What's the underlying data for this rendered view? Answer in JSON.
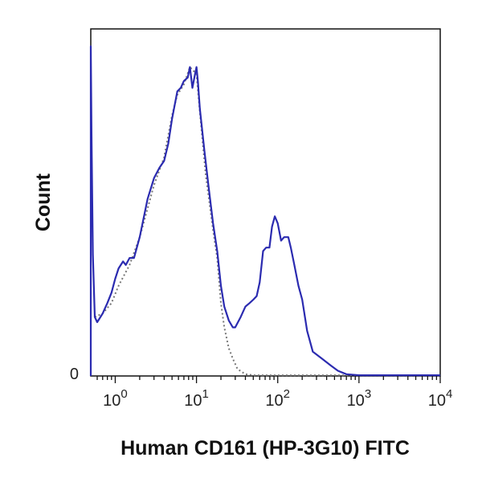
{
  "chart_data": {
    "type": "line",
    "title": "",
    "xlabel": "Human CD161 (HP-3G10) FITC",
    "ylabel": "Count",
    "x_scale": "log",
    "xlim": [
      0.5,
      10000
    ],
    "ylim": [
      0,
      100
    ],
    "y_tick_labels": [
      "0"
    ],
    "x_ticks": [
      {
        "value": 1,
        "base": "10",
        "exp": "0"
      },
      {
        "value": 10,
        "base": "10",
        "exp": "1"
      },
      {
        "value": 100,
        "base": "10",
        "exp": "2"
      },
      {
        "value": 1000,
        "base": "10",
        "exp": "3"
      },
      {
        "value": 10000,
        "base": "10",
        "exp": "4"
      }
    ],
    "grid": false,
    "legend": "none",
    "series": [
      {
        "style": "solid",
        "color": "#2b2bb0",
        "points": [
          [
            0.5,
            0
          ],
          [
            0.5,
            95
          ],
          [
            0.51,
            70
          ],
          [
            0.53,
            35
          ],
          [
            0.56,
            17
          ],
          [
            0.6,
            15.5
          ],
          [
            0.7,
            18
          ],
          [
            0.8,
            21
          ],
          [
            0.9,
            24
          ],
          [
            1.0,
            28
          ],
          [
            1.1,
            31
          ],
          [
            1.25,
            33
          ],
          [
            1.35,
            32
          ],
          [
            1.5,
            34
          ],
          [
            1.7,
            34
          ],
          [
            2.0,
            40
          ],
          [
            2.5,
            51
          ],
          [
            3.0,
            57
          ],
          [
            3.5,
            60
          ],
          [
            4.0,
            62
          ],
          [
            4.5,
            67
          ],
          [
            5.0,
            74
          ],
          [
            5.8,
            82
          ],
          [
            6.4,
            83
          ],
          [
            7.0,
            85
          ],
          [
            7.8,
            86
          ],
          [
            8.3,
            89
          ],
          [
            8.9,
            83
          ],
          [
            9.6,
            87
          ],
          [
            10.0,
            89
          ],
          [
            10.4,
            85
          ],
          [
            11.0,
            77
          ],
          [
            12.5,
            65
          ],
          [
            14.0,
            55
          ],
          [
            16.0,
            44
          ],
          [
            18.0,
            36
          ],
          [
            20.0,
            26
          ],
          [
            22.0,
            20
          ],
          [
            25.0,
            16
          ],
          [
            28.0,
            14
          ],
          [
            30.0,
            14
          ],
          [
            35.0,
            17
          ],
          [
            40.0,
            20
          ],
          [
            45.0,
            21
          ],
          [
            50.0,
            22
          ],
          [
            55.0,
            23
          ],
          [
            60.0,
            27
          ],
          [
            66.0,
            36
          ],
          [
            72.0,
            37
          ],
          [
            79.0,
            37
          ],
          [
            85.0,
            43
          ],
          [
            92.0,
            46
          ],
          [
            100.0,
            44
          ],
          [
            110.0,
            39
          ],
          [
            120.0,
            40
          ],
          [
            135.0,
            40
          ],
          [
            145.0,
            37
          ],
          [
            160.0,
            32
          ],
          [
            180.0,
            26
          ],
          [
            200.0,
            22
          ],
          [
            230.0,
            13
          ],
          [
            270.0,
            7
          ],
          [
            350.0,
            5
          ],
          [
            450.0,
            3
          ],
          [
            550.0,
            1.5
          ],
          [
            700.0,
            0.5
          ],
          [
            1000.0,
            0.2
          ],
          [
            10000.0,
            0.2
          ]
        ]
      },
      {
        "style": "dotted",
        "color": "#777777",
        "points": [
          [
            0.56,
            17
          ],
          [
            0.7,
            18
          ],
          [
            0.9,
            21
          ],
          [
            1.1,
            26
          ],
          [
            1.5,
            32
          ],
          [
            2.0,
            40
          ],
          [
            3.0,
            55
          ],
          [
            4.0,
            63
          ],
          [
            5.0,
            75
          ],
          [
            5.8,
            81
          ],
          [
            7.0,
            84
          ],
          [
            8.3,
            89
          ],
          [
            10.0,
            87
          ],
          [
            11.0,
            76
          ],
          [
            13.0,
            58
          ],
          [
            16.0,
            42
          ],
          [
            18.0,
            34
          ],
          [
            20.0,
            21
          ],
          [
            22.0,
            14
          ],
          [
            25.0,
            8
          ],
          [
            28.0,
            5
          ],
          [
            32.0,
            2
          ],
          [
            40.0,
            0.5
          ],
          [
            50.0,
            0.2
          ],
          [
            10000.0,
            0.2
          ]
        ]
      }
    ]
  }
}
